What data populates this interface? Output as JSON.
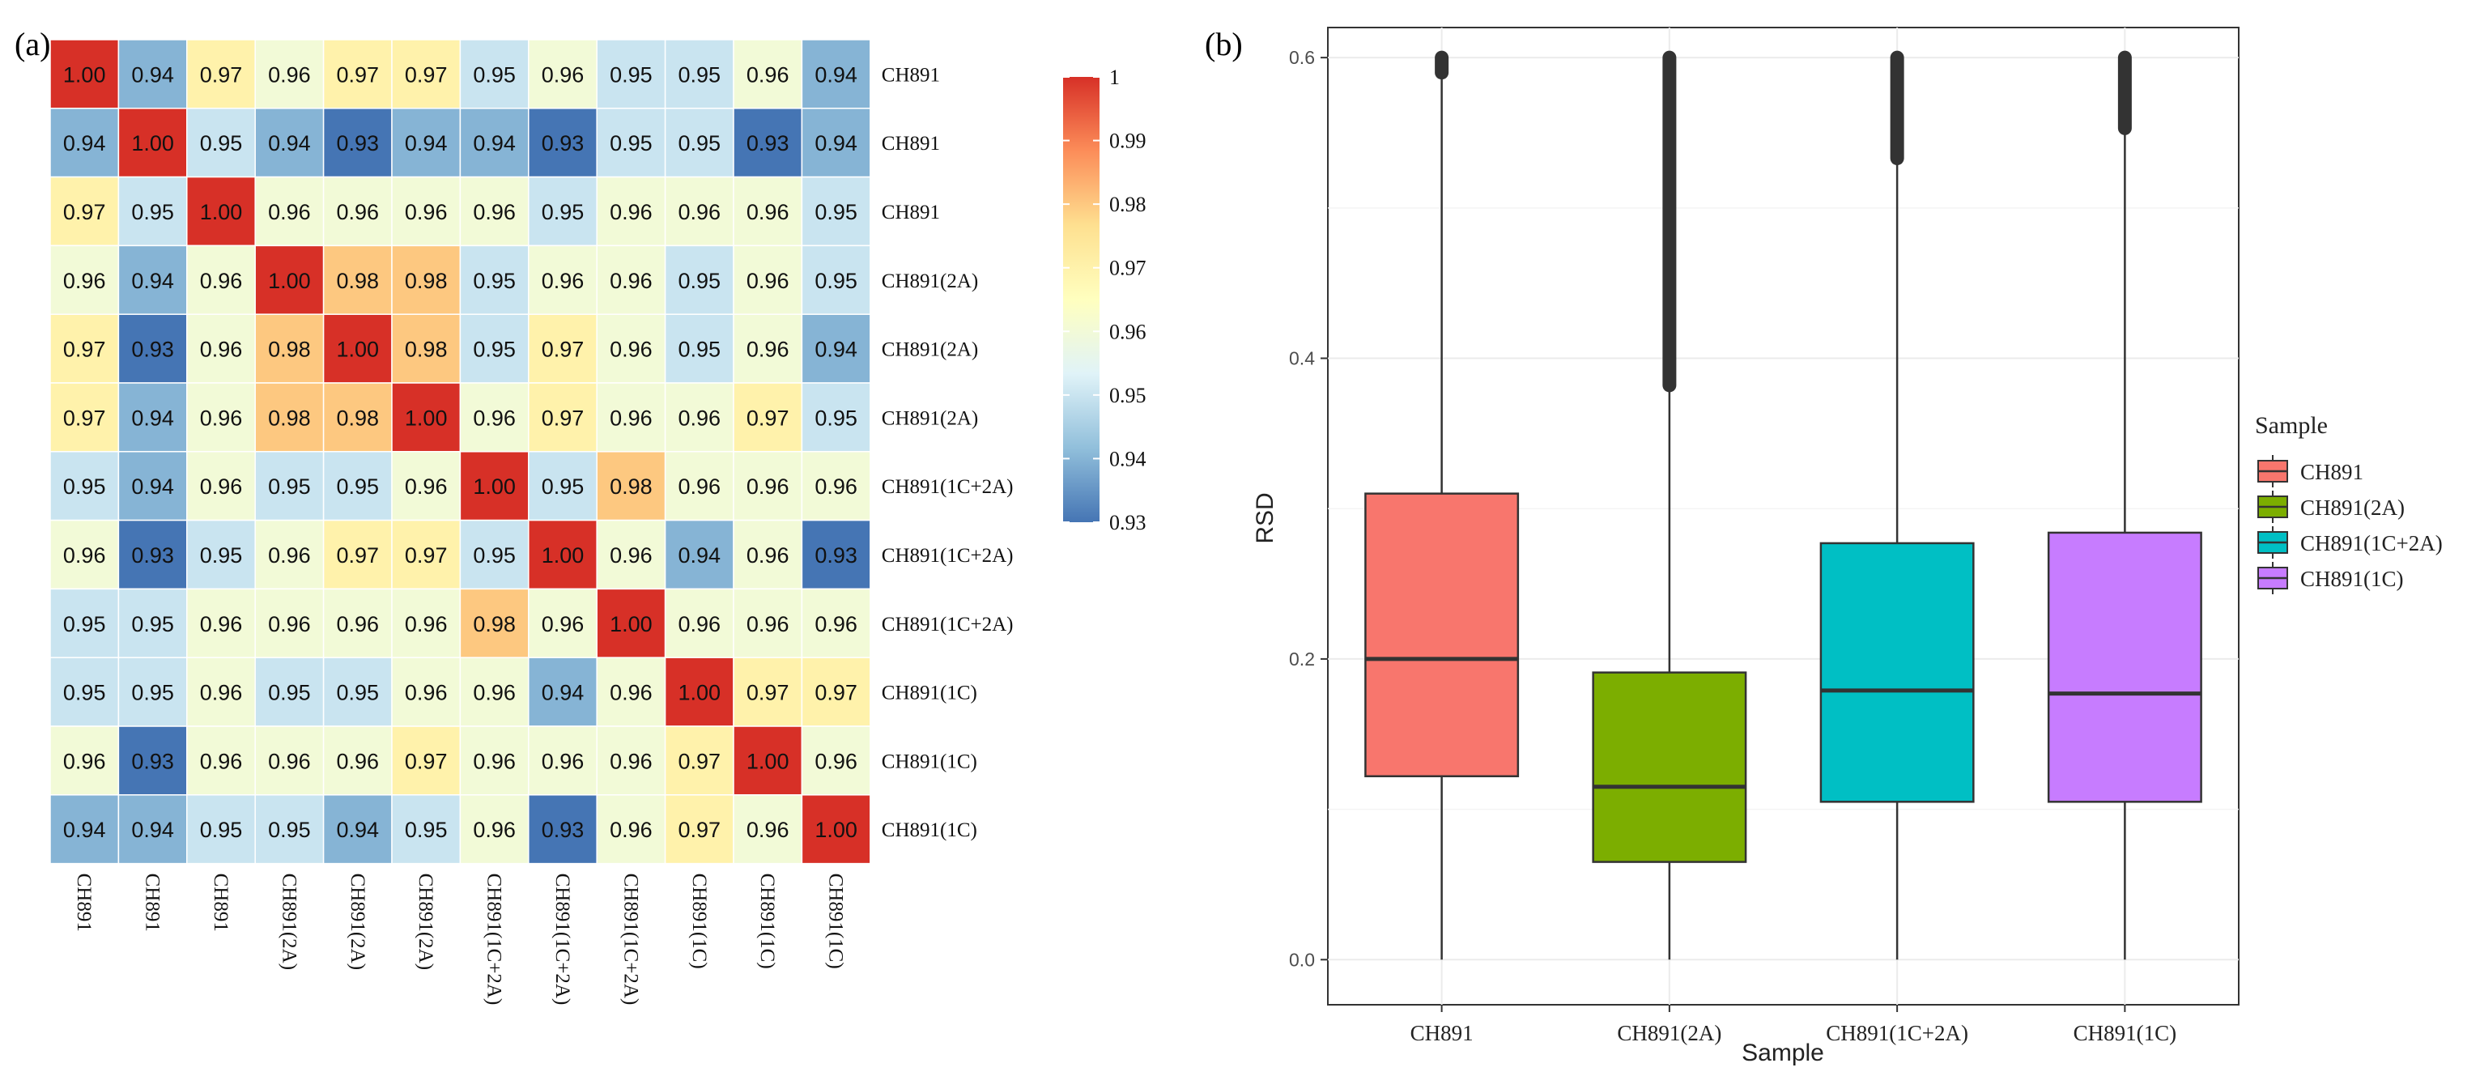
{
  "chart_data": [
    {
      "type": "heatmap",
      "panel_label": "(a)",
      "row_labels": [
        "CH891",
        "CH891",
        "CH891",
        "CH891(2A)",
        "CH891(2A)",
        "CH891(2A)",
        "CH891(1C+2A)",
        "CH891(1C+2A)",
        "CH891(1C+2A)",
        "CH891(1C)",
        "CH891(1C)",
        "CH891(1C)"
      ],
      "col_labels": [
        "CH891",
        "CH891",
        "CH891",
        "CH891(2A)",
        "CH891(2A)",
        "CH891(2A)",
        "CH891(1C+2A)",
        "CH891(1C+2A)",
        "CH891(1C+2A)",
        "CH891(1C)",
        "CH891(1C)",
        "CH891(1C)"
      ],
      "values": [
        [
          1.0,
          0.94,
          0.97,
          0.96,
          0.97,
          0.97,
          0.95,
          0.96,
          0.95,
          0.95,
          0.96,
          0.94
        ],
        [
          0.94,
          1.0,
          0.95,
          0.94,
          0.93,
          0.94,
          0.94,
          0.93,
          0.95,
          0.95,
          0.93,
          0.94
        ],
        [
          0.97,
          0.95,
          1.0,
          0.96,
          0.96,
          0.96,
          0.96,
          0.95,
          0.96,
          0.96,
          0.96,
          0.95
        ],
        [
          0.96,
          0.94,
          0.96,
          1.0,
          0.98,
          0.98,
          0.95,
          0.96,
          0.96,
          0.95,
          0.96,
          0.95
        ],
        [
          0.97,
          0.93,
          0.96,
          0.98,
          1.0,
          0.98,
          0.95,
          0.97,
          0.96,
          0.95,
          0.96,
          0.94
        ],
        [
          0.97,
          0.94,
          0.96,
          0.98,
          0.98,
          1.0,
          0.96,
          0.97,
          0.96,
          0.96,
          0.97,
          0.95
        ],
        [
          0.95,
          0.94,
          0.96,
          0.95,
          0.95,
          0.96,
          1.0,
          0.95,
          0.98,
          0.96,
          0.96,
          0.96
        ],
        [
          0.96,
          0.93,
          0.95,
          0.96,
          0.97,
          0.97,
          0.95,
          1.0,
          0.96,
          0.94,
          0.96,
          0.93
        ],
        [
          0.95,
          0.95,
          0.96,
          0.96,
          0.96,
          0.96,
          0.98,
          0.96,
          1.0,
          0.96,
          0.96,
          0.96
        ],
        [
          0.95,
          0.95,
          0.96,
          0.95,
          0.95,
          0.96,
          0.96,
          0.94,
          0.96,
          1.0,
          0.97,
          0.97
        ],
        [
          0.96,
          0.93,
          0.96,
          0.96,
          0.96,
          0.97,
          0.96,
          0.96,
          0.96,
          0.97,
          1.0,
          0.96
        ],
        [
          0.94,
          0.94,
          0.95,
          0.95,
          0.94,
          0.95,
          0.96,
          0.93,
          0.96,
          0.97,
          0.96,
          1.0
        ]
      ],
      "value_labels": [
        [
          "1.00",
          "0.94",
          "0.97",
          "0.96",
          "0.97",
          "0.97",
          "0.95",
          "0.96",
          "0.95",
          "0.95",
          "0.96",
          "0.94"
        ],
        [
          "0.94",
          "1.00",
          "0.95",
          "0.94",
          "0.93",
          "0.94",
          "0.94",
          "0.93",
          "0.95",
          "0.95",
          "0.93",
          "0.94"
        ],
        [
          "0.97",
          "0.95",
          "1.00",
          "0.96",
          "0.96",
          "0.96",
          "0.96",
          "0.95",
          "0.96",
          "0.96",
          "0.96",
          "0.95"
        ],
        [
          "0.96",
          "0.94",
          "0.96",
          "1.00",
          "0.98",
          "0.98",
          "0.95",
          "0.96",
          "0.96",
          "0.95",
          "0.96",
          "0.95"
        ],
        [
          "0.97",
          "0.93",
          "0.96",
          "0.98",
          "1.00",
          "0.98",
          "0.95",
          "0.97",
          "0.96",
          "0.95",
          "0.96",
          "0.94"
        ],
        [
          "0.97",
          "0.94",
          "0.96",
          "0.98",
          "0.98",
          "1.00",
          "0.96",
          "0.97",
          "0.96",
          "0.96",
          "0.97",
          "0.95"
        ],
        [
          "0.95",
          "0.94",
          "0.96",
          "0.95",
          "0.95",
          "0.96",
          "1.00",
          "0.95",
          "0.98",
          "0.96",
          "0.96",
          "0.96"
        ],
        [
          "0.96",
          "0.93",
          "0.95",
          "0.96",
          "0.97",
          "0.97",
          "0.95",
          "1.00",
          "0.96",
          "0.94",
          "0.96",
          "0.93"
        ],
        [
          "0.95",
          "0.95",
          "0.96",
          "0.96",
          "0.96",
          "0.96",
          "0.98",
          "0.96",
          "1.00",
          "0.96",
          "0.96",
          "0.96"
        ],
        [
          "0.95",
          "0.95",
          "0.96",
          "0.95",
          "0.95",
          "0.96",
          "0.96",
          "0.94",
          "0.96",
          "1.00",
          "0.97",
          "0.97"
        ],
        [
          "0.96",
          "0.93",
          "0.96",
          "0.96",
          "0.96",
          "0.97",
          "0.96",
          "0.96",
          "0.96",
          "0.97",
          "1.00",
          "0.96"
        ],
        [
          "0.94",
          "0.94",
          "0.95",
          "0.95",
          "0.94",
          "0.95",
          "0.96",
          "0.93",
          "0.96",
          "0.97",
          "0.96",
          "1.00"
        ]
      ],
      "colorbar": {
        "min": 0.93,
        "max": 1.0,
        "tick_values": [
          1.0,
          0.99,
          0.98,
          0.97,
          0.96,
          0.95,
          0.94,
          0.93
        ],
        "tick_labels": [
          "1",
          "0.99",
          "0.98",
          "0.97",
          "0.96",
          "0.95",
          "0.94",
          "0.93"
        ],
        "colors": [
          "#4575b4",
          "#91bfdb",
          "#e0f3f8",
          "#ffffbf",
          "#fee090",
          "#fc8d59",
          "#d73027"
        ]
      }
    },
    {
      "type": "box",
      "panel_label": "(b)",
      "xlabel": "Sample",
      "ylabel": "RSD",
      "categories": [
        "CH891",
        "CH891(2A)",
        "CH891(1C+2A)",
        "CH891(1C)"
      ],
      "ylim": [
        -0.03,
        0.62
      ],
      "yticks": [
        0.0,
        0.2,
        0.4,
        0.6
      ],
      "ytick_labels": [
        "0.0",
        "0.2",
        "0.4",
        "0.6"
      ],
      "boxes": [
        {
          "name": "CH891",
          "whisker_low": 0.0,
          "q1": 0.122,
          "median": 0.2,
          "q3": 0.31,
          "whisker_high": 0.59,
          "outlier_range": [
            0.59,
            0.6
          ],
          "color": "#f8766d"
        },
        {
          "name": "CH891(2A)",
          "whisker_low": 0.0,
          "q1": 0.065,
          "median": 0.115,
          "q3": 0.191,
          "whisker_high": 0.382,
          "outlier_range": [
            0.382,
            0.6
          ],
          "color": "#7cae00"
        },
        {
          "name": "CH891(1C+2A)",
          "whisker_low": 0.0,
          "q1": 0.105,
          "median": 0.179,
          "q3": 0.277,
          "whisker_high": 0.533,
          "outlier_range": [
            0.533,
            0.6
          ],
          "color": "#00bfc4"
        },
        {
          "name": "CH891(1C)",
          "whisker_low": 0.0,
          "q1": 0.105,
          "median": 0.177,
          "q3": 0.284,
          "whisker_high": 0.553,
          "outlier_range": [
            0.553,
            0.6
          ],
          "color": "#c77cff"
        }
      ],
      "legend": {
        "title": "Sample",
        "position": "right",
        "entries": [
          "CH891",
          "CH891(2A)",
          "CH891(1C+2A)",
          "CH891(1C)"
        ]
      }
    }
  ]
}
